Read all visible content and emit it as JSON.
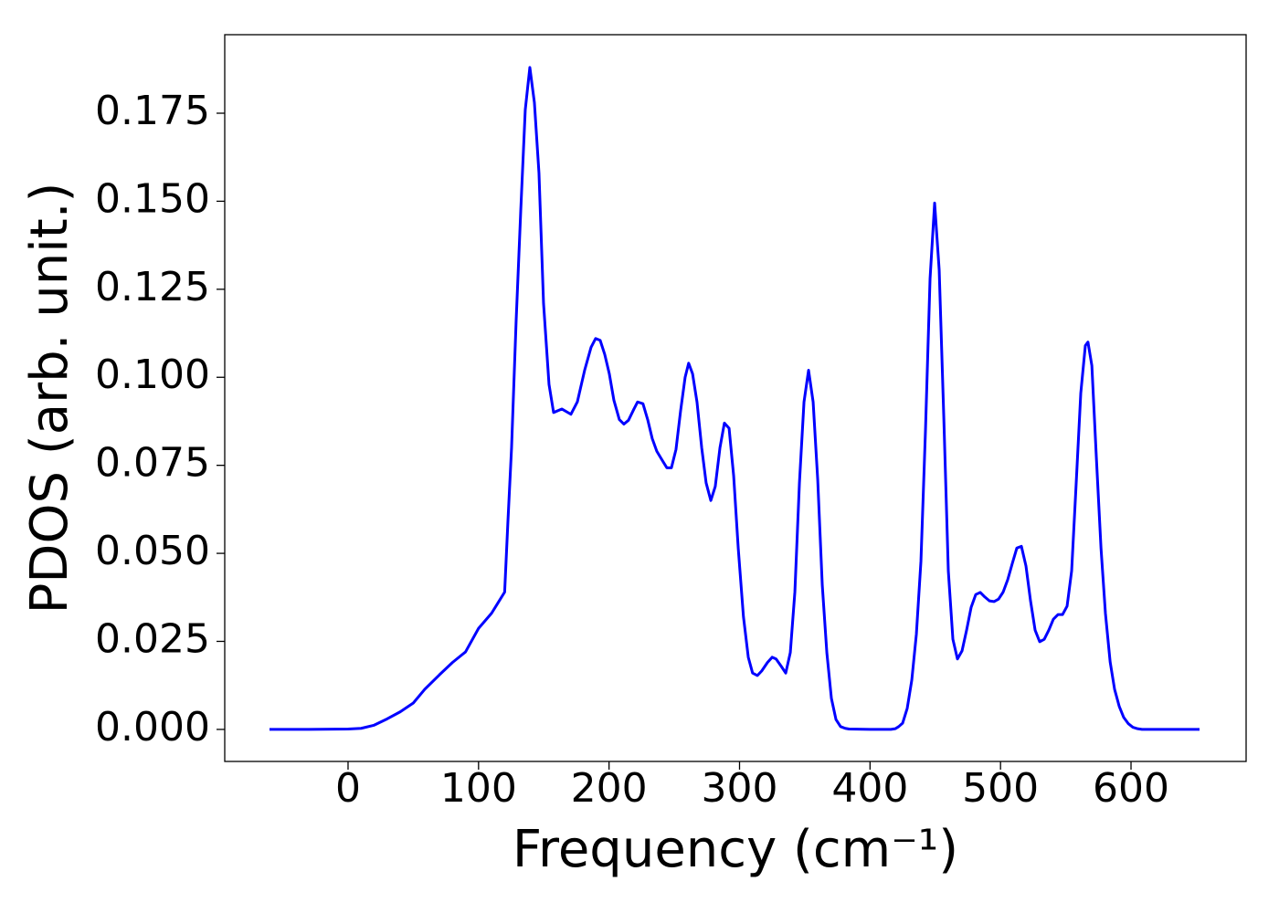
{
  "chart_data": {
    "type": "line",
    "xlabel": "Frequency (cm⁻¹)",
    "ylabel": "PDOS (arb. unit.)",
    "xlim": [
      -94.5,
      688.2
    ],
    "ylim": [
      -0.0091,
      0.1973
    ],
    "xticks": [
      0,
      100,
      200,
      300,
      400,
      500,
      600
    ],
    "yticks": [
      {
        "value": 0,
        "label": "0.000"
      },
      {
        "value": 0.025,
        "label": "0.025"
      },
      {
        "value": 0.05,
        "label": "0.050"
      },
      {
        "value": 0.075,
        "label": "0.075"
      },
      {
        "value": 0.1,
        "label": "0.100"
      },
      {
        "value": 0.125,
        "label": "0.125"
      },
      {
        "value": 0.15,
        "label": "0.150"
      },
      {
        "value": 0.175,
        "label": "0.175"
      }
    ],
    "grid": false,
    "series": [
      {
        "color": "#0000ff",
        "x": [
          -60.2,
          -30,
          0,
          10,
          20,
          30,
          40,
          50,
          58.8,
          70,
          80,
          90,
          100,
          110,
          115,
          120,
          122.5,
          125.3,
          128.8,
          132.3,
          135.8,
          139.3,
          142.8,
          146.3,
          149.8,
          154,
          157.5,
          163.8,
          170.8,
          175.7,
          181.3,
          186.2,
          189.7,
          193.2,
          196.7,
          200.2,
          203.7,
          207.9,
          211.4,
          214.9,
          219.1,
          221.9,
          226,
          229.6,
          233.1,
          236.6,
          240.8,
          244.3,
          247.8,
          251.3,
          254.8,
          258.3,
          261,
          264,
          267.4,
          271,
          274.4,
          278,
          281.4,
          285,
          288.4,
          292,
          295.5,
          299,
          303,
          306.7,
          310,
          313.7,
          317,
          321.4,
          325,
          328,
          332,
          335.4,
          338.9,
          342.4,
          345.9,
          349.4,
          352.9,
          356.4,
          359.9,
          363.4,
          366.9,
          370.4,
          373.9,
          377.4,
          381,
          384,
          400,
          416,
          419.4,
          422,
          425,
          428.5,
          432,
          435.5,
          439,
          442.5,
          446,
          449.5,
          453,
          456.5,
          460,
          463.5,
          467,
          470.5,
          474,
          477.5,
          481,
          484.5,
          488,
          491.5,
          495,
          498.5,
          502,
          505.5,
          509,
          512.5,
          516,
          519.5,
          523,
          526.5,
          530,
          533.5,
          537,
          540.5,
          544,
          547.5,
          551,
          554.5,
          558,
          561.5,
          565,
          567,
          570,
          573.4,
          577,
          580.4,
          584,
          587.4,
          591,
          594.4,
          598,
          601.4,
          605,
          608.4,
          630,
          652.5
        ],
        "values": [
          0,
          0,
          0.0001,
          0.0003,
          0.0012,
          0.003,
          0.005,
          0.0075,
          0.0114,
          0.0155,
          0.019,
          0.022,
          0.0287,
          0.033,
          0.036,
          0.039,
          0.059,
          0.08,
          0.116,
          0.147,
          0.176,
          0.188,
          0.178,
          0.158,
          0.121,
          0.098,
          0.09,
          0.091,
          0.0895,
          0.093,
          0.102,
          0.1085,
          0.111,
          0.1105,
          0.1065,
          0.101,
          0.0935,
          0.088,
          0.0867,
          0.0878,
          0.091,
          0.093,
          0.0925,
          0.088,
          0.0826,
          0.079,
          0.0764,
          0.0743,
          0.0743,
          0.0795,
          0.0904,
          0.1,
          0.104,
          0.101,
          0.093,
          0.08,
          0.07,
          0.065,
          0.069,
          0.08,
          0.087,
          0.0855,
          0.072,
          0.0515,
          0.032,
          0.0205,
          0.016,
          0.0153,
          0.0166,
          0.019,
          0.0205,
          0.02,
          0.0179,
          0.016,
          0.0218,
          0.039,
          0.07,
          0.093,
          0.102,
          0.093,
          0.071,
          0.041,
          0.0218,
          0.0088,
          0.0028,
          0.0008,
          0.0003,
          0.0001,
          0,
          0,
          0.0002,
          0.0008,
          0.0018,
          0.006,
          0.014,
          0.027,
          0.0477,
          0.085,
          0.128,
          0.1495,
          0.1305,
          0.089,
          0.045,
          0.0256,
          0.02,
          0.0223,
          0.0282,
          0.0347,
          0.0383,
          0.0389,
          0.0376,
          0.0365,
          0.0363,
          0.037,
          0.039,
          0.0425,
          0.0471,
          0.0515,
          0.052,
          0.0464,
          0.0365,
          0.0282,
          0.0249,
          0.0256,
          0.0282,
          0.0313,
          0.0326,
          0.0326,
          0.035,
          0.045,
          0.07,
          0.0955,
          0.109,
          0.11,
          0.1033,
          0.0775,
          0.0515,
          0.0329,
          0.0192,
          0.0114,
          0.0065,
          0.0034,
          0.0016,
          0.0006,
          0.0002,
          0,
          0,
          0
        ]
      }
    ]
  }
}
